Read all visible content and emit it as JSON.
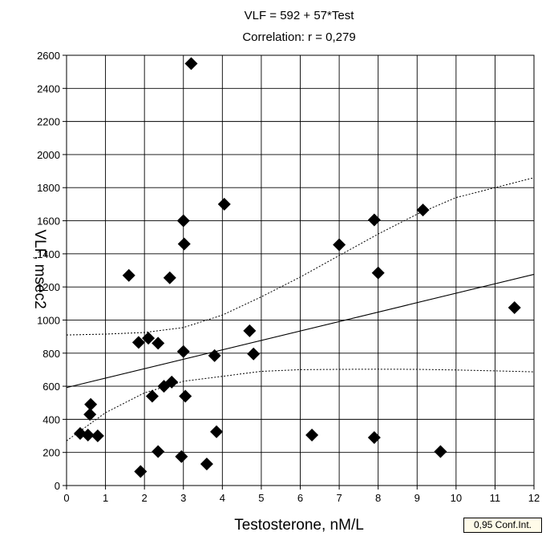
{
  "chart_data": {
    "type": "scatter",
    "title": "VLF = 592 + 57*Test",
    "subtitle": "Correlation: r = 0,279",
    "xlabel": "Testosterone, nM/L",
    "ylabel": "VLF, msec2",
    "xlim": [
      0,
      12
    ],
    "ylim": [
      0,
      2600
    ],
    "xticks": [
      "0",
      "1",
      "2",
      "3",
      "4",
      "5",
      "6",
      "7",
      "8",
      "9",
      "10",
      "11",
      "12"
    ],
    "yticks": [
      "0",
      "200",
      "400",
      "600",
      "800",
      "1000",
      "1200",
      "1400",
      "1600",
      "1800",
      "2000",
      "2200",
      "2400",
      "2600"
    ],
    "grid": true,
    "legend": "0,95 Conf.Int.",
    "regression": {
      "intercept": 592,
      "slope": 57
    },
    "confidence_band": {
      "upper": [
        [
          0,
          910
        ],
        [
          1,
          915
        ],
        [
          2,
          925
        ],
        [
          3,
          955
        ],
        [
          4,
          1030
        ],
        [
          5,
          1140
        ],
        [
          6,
          1260
        ],
        [
          7,
          1390
        ],
        [
          8,
          1520
        ],
        [
          9,
          1640
        ],
        [
          10,
          1740
        ],
        [
          11,
          1800
        ],
        [
          12,
          1860
        ]
      ],
      "lower": [
        [
          0,
          270
        ],
        [
          1,
          440
        ],
        [
          2,
          560
        ],
        [
          3,
          630
        ],
        [
          4,
          660
        ],
        [
          5,
          690
        ],
        [
          6,
          700
        ],
        [
          7,
          702
        ],
        [
          8,
          703
        ],
        [
          9,
          702
        ],
        [
          10,
          698
        ],
        [
          11,
          693
        ],
        [
          12,
          687
        ]
      ]
    },
    "points": [
      {
        "x": 0.35,
        "y": 315
      },
      {
        "x": 0.55,
        "y": 305
      },
      {
        "x": 0.6,
        "y": 430
      },
      {
        "x": 0.62,
        "y": 490
      },
      {
        "x": 0.8,
        "y": 300
      },
      {
        "x": 1.6,
        "y": 1270
      },
      {
        "x": 1.85,
        "y": 865
      },
      {
        "x": 1.9,
        "y": 85
      },
      {
        "x": 2.1,
        "y": 890
      },
      {
        "x": 2.2,
        "y": 540
      },
      {
        "x": 2.35,
        "y": 860
      },
      {
        "x": 2.35,
        "y": 205
      },
      {
        "x": 2.5,
        "y": 600
      },
      {
        "x": 2.65,
        "y": 1255
      },
      {
        "x": 2.7,
        "y": 625
      },
      {
        "x": 2.95,
        "y": 175
      },
      {
        "x": 3.0,
        "y": 1600
      },
      {
        "x": 3.0,
        "y": 810
      },
      {
        "x": 3.02,
        "y": 1460
      },
      {
        "x": 3.05,
        "y": 540
      },
      {
        "x": 3.2,
        "y": 2550
      },
      {
        "x": 3.6,
        "y": 130
      },
      {
        "x": 3.8,
        "y": 785
      },
      {
        "x": 3.85,
        "y": 325
      },
      {
        "x": 4.05,
        "y": 1700
      },
      {
        "x": 4.7,
        "y": 935
      },
      {
        "x": 4.8,
        "y": 795
      },
      {
        "x": 6.3,
        "y": 305
      },
      {
        "x": 7.0,
        "y": 1455
      },
      {
        "x": 7.9,
        "y": 1605
      },
      {
        "x": 7.9,
        "y": 290
      },
      {
        "x": 8.0,
        "y": 1285
      },
      {
        "x": 9.15,
        "y": 1665
      },
      {
        "x": 9.6,
        "y": 205
      },
      {
        "x": 11.5,
        "y": 1075
      }
    ]
  }
}
